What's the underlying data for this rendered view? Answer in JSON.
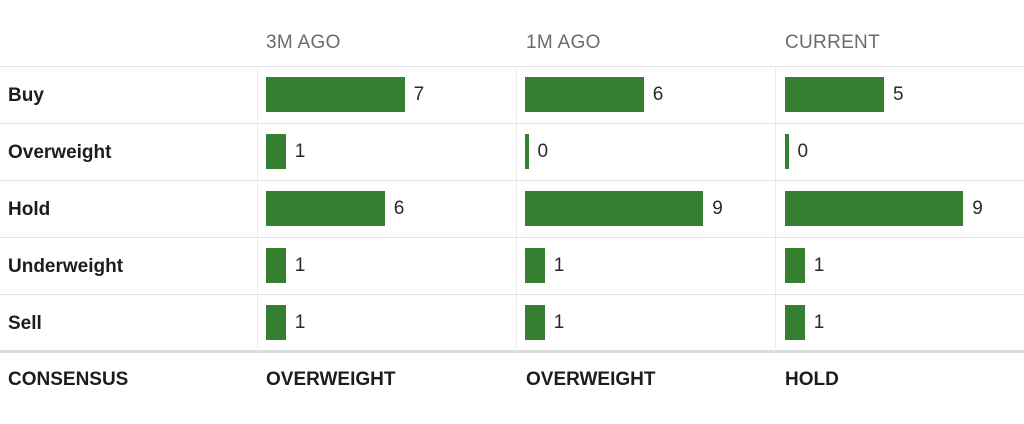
{
  "chart_data": {
    "type": "bar",
    "columns": [
      "3M AGO",
      "1M AGO",
      "CURRENT"
    ],
    "categories": [
      "Buy",
      "Overweight",
      "Hold",
      "Underweight",
      "Sell"
    ],
    "series": [
      {
        "values": [
          7,
          1,
          6,
          1,
          1
        ]
      },
      {
        "values": [
          6,
          0,
          9,
          1,
          1
        ]
      },
      {
        "values": [
          5,
          0,
          9,
          1,
          1
        ]
      }
    ],
    "consensus_label": "CONSENSUS",
    "consensus": [
      "OVERWEIGHT",
      "OVERWEIGHT",
      "HOLD"
    ],
    "bar_color": "#357f30"
  }
}
